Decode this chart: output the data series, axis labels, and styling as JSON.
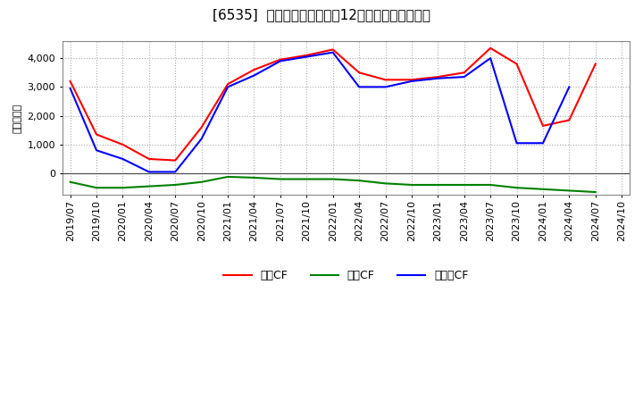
{
  "title": "[6535]  キャッシュフローの12か月移動合計の推移",
  "ylabel": "（百万円）",
  "background_color": "#ffffff",
  "plot_bg_color": "#ffffff",
  "grid_color": "#aaaaaa",
  "x_labels": [
    "2019/07",
    "2019/10",
    "2020/01",
    "2020/04",
    "2020/07",
    "2020/10",
    "2021/01",
    "2021/04",
    "2021/07",
    "2021/10",
    "2022/01",
    "2022/04",
    "2022/07",
    "2022/10",
    "2023/01",
    "2023/04",
    "2023/07",
    "2023/10",
    "2024/01",
    "2024/04",
    "2024/07",
    "2024/10"
  ],
  "operating_cf": [
    3200,
    1350,
    1000,
    500,
    450,
    1600,
    3100,
    3600,
    3950,
    4100,
    4300,
    3500,
    3250,
    3250,
    3350,
    3500,
    4350,
    3800,
    1650,
    1850,
    3800,
    null
  ],
  "investing_cf": [
    -300,
    -500,
    -500,
    -450,
    -400,
    -300,
    -120,
    -150,
    -200,
    -200,
    -200,
    -250,
    -350,
    -400,
    -400,
    -400,
    -400,
    -500,
    -550,
    -600,
    -650,
    null
  ],
  "free_cf": [
    2950,
    800,
    500,
    50,
    50,
    1200,
    3000,
    3400,
    3900,
    4050,
    4200,
    3000,
    3000,
    3200,
    3300,
    3350,
    4000,
    1050,
    1050,
    3000,
    null,
    null
  ],
  "series_colors": {
    "operating": "#ff0000",
    "investing": "#008000",
    "free": "#0000ff"
  },
  "ylim": [
    -750,
    4600
  ],
  "yticks": [
    0,
    1000,
    2000,
    3000,
    4000
  ],
  "title_fontsize": 11,
  "axis_fontsize": 8,
  "legend_fontsize": 9
}
